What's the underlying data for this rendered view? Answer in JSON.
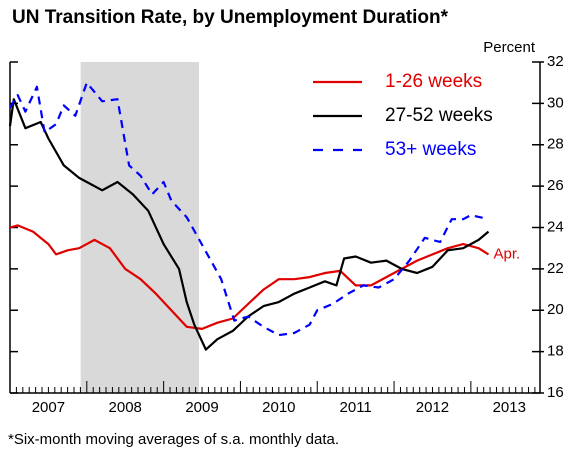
{
  "chart_data": {
    "type": "line",
    "title": "UN Transition Rate, by Unemployment Duration*",
    "y_axis_label": "Percent",
    "footnote": "*Six-month moving averages of s.a. monthly data.",
    "annotation": "Apr.",
    "recession": [
      2007.92,
      2009.46
    ],
    "xlim": [
      2007,
      2013.9
    ],
    "xticks": [
      {
        "value": 2007.5,
        "label": "2007"
      },
      {
        "value": 2008.5,
        "label": "2008"
      },
      {
        "value": 2009.5,
        "label": "2009"
      },
      {
        "value": 2010.5,
        "label": "2010"
      },
      {
        "value": 2011.5,
        "label": "2011"
      },
      {
        "value": 2012.5,
        "label": "2012"
      },
      {
        "value": 2013.5,
        "label": "2013"
      }
    ],
    "ylim": [
      16,
      32
    ],
    "yticks": [
      16,
      18,
      20,
      22,
      24,
      26,
      28,
      30,
      32
    ],
    "legend": "upper right",
    "series": [
      {
        "name": "1-26 weeks",
        "color": "#e00000",
        "dash": false,
        "x": [
          2007.0,
          2007.1,
          2007.3,
          2007.5,
          2007.6,
          2007.75,
          2007.9,
          2008.1,
          2008.3,
          2008.5,
          2008.7,
          2008.9,
          2009.1,
          2009.3,
          2009.5,
          2009.7,
          2009.9,
          2010.1,
          2010.3,
          2010.5,
          2010.7,
          2010.9,
          2011.1,
          2011.3,
          2011.5,
          2011.7,
          2011.9,
          2012.1,
          2012.3,
          2012.5,
          2012.7,
          2012.9,
          2013.1,
          2013.23
        ],
        "values": [
          24.0,
          24.1,
          23.8,
          23.2,
          22.7,
          22.9,
          23.0,
          23.4,
          23.0,
          22.0,
          21.5,
          20.8,
          20.0,
          19.2,
          19.1,
          19.4,
          19.6,
          20.3,
          21.0,
          21.5,
          21.5,
          21.6,
          21.8,
          21.9,
          21.2,
          21.2,
          21.6,
          22.0,
          22.4,
          22.7,
          23.0,
          23.2,
          23.0,
          22.7
        ]
      },
      {
        "name": "27-52 weeks",
        "color": "#000000",
        "dash": false,
        "x": [
          2007.0,
          2007.05,
          2007.2,
          2007.4,
          2007.5,
          2007.7,
          2007.9,
          2008.0,
          2008.2,
          2008.4,
          2008.6,
          2008.8,
          2009.0,
          2009.2,
          2009.3,
          2009.4,
          2009.55,
          2009.7,
          2009.9,
          2010.1,
          2010.3,
          2010.5,
          2010.7,
          2010.9,
          2011.1,
          2011.25,
          2011.35,
          2011.5,
          2011.7,
          2011.9,
          2012.1,
          2012.3,
          2012.5,
          2012.7,
          2012.9,
          2013.1,
          2013.23
        ],
        "values": [
          28.9,
          30.2,
          28.8,
          29.1,
          28.3,
          27.0,
          26.4,
          26.2,
          25.8,
          26.2,
          25.6,
          24.8,
          23.2,
          22.0,
          20.4,
          19.3,
          18.1,
          18.6,
          19.0,
          19.7,
          20.2,
          20.4,
          20.8,
          21.1,
          21.4,
          21.2,
          22.5,
          22.6,
          22.3,
          22.4,
          22.0,
          21.8,
          22.1,
          22.9,
          23.0,
          23.4,
          23.8
        ]
      },
      {
        "name": "53+ weeks",
        "color": "#0000ff",
        "dash": true,
        "x": [
          2007.0,
          2007.1,
          2007.2,
          2007.35,
          2007.45,
          2007.6,
          2007.7,
          2007.85,
          2008.0,
          2008.2,
          2008.4,
          2008.55,
          2008.7,
          2008.85,
          2009.0,
          2009.1,
          2009.3,
          2009.45,
          2009.6,
          2009.75,
          2009.92,
          2010.1,
          2010.3,
          2010.5,
          2010.7,
          2010.9,
          2011.0,
          2011.2,
          2011.4,
          2011.6,
          2011.8,
          2012.0,
          2012.2,
          2012.4,
          2012.6,
          2012.75,
          2012.9,
          2013.0,
          2013.23
        ],
        "values": [
          29.8,
          30.4,
          29.6,
          30.8,
          28.6,
          29.0,
          29.9,
          29.4,
          31.0,
          30.1,
          30.2,
          27.0,
          26.5,
          25.6,
          26.2,
          25.3,
          24.5,
          23.5,
          22.5,
          21.5,
          19.5,
          19.7,
          19.2,
          18.8,
          18.9,
          19.3,
          20.0,
          20.3,
          20.8,
          21.2,
          21.1,
          21.5,
          22.4,
          23.5,
          23.3,
          24.4,
          24.4,
          24.6,
          24.4
        ]
      }
    ]
  }
}
